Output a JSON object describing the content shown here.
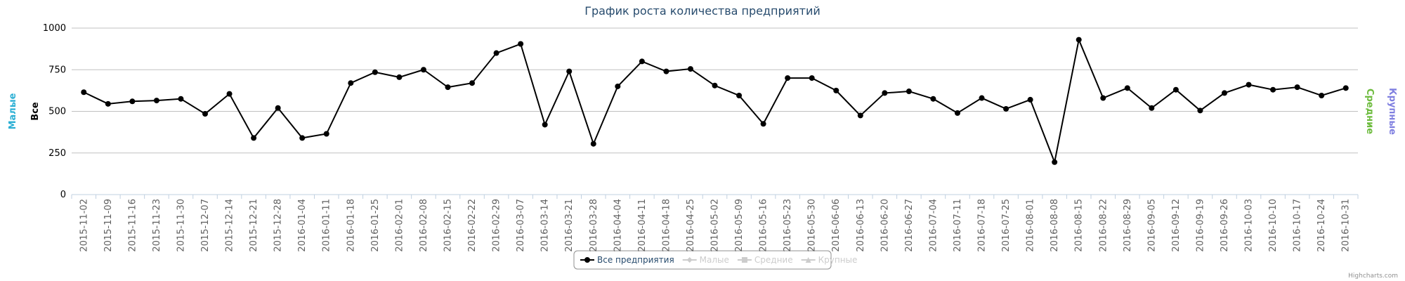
{
  "chart_data": {
    "type": "line",
    "title": "График роста количества предприятий",
    "credits": "Highcharts.com",
    "categories": [
      "2015-11-02",
      "2015-11-09",
      "2015-11-16",
      "2015-11-23",
      "2015-11-30",
      "2015-12-07",
      "2015-12-14",
      "2015-12-21",
      "2015-12-28",
      "2016-01-04",
      "2016-01-11",
      "2016-01-18",
      "2016-01-25",
      "2016-02-01",
      "2016-02-08",
      "2016-02-15",
      "2016-02-22",
      "2016-02-29",
      "2016-03-07",
      "2016-03-14",
      "2016-03-21",
      "2016-03-28",
      "2016-04-04",
      "2016-04-11",
      "2016-04-18",
      "2016-04-25",
      "2016-05-02",
      "2016-05-09",
      "2016-05-16",
      "2016-05-23",
      "2016-05-30",
      "2016-06-06",
      "2016-06-13",
      "2016-06-20",
      "2016-06-27",
      "2016-07-04",
      "2016-07-11",
      "2016-07-18",
      "2016-07-25",
      "2016-08-01",
      "2016-08-08",
      "2016-08-15",
      "2016-08-22",
      "2016-08-29",
      "2016-09-05",
      "2016-09-12",
      "2016-09-19",
      "2016-09-26",
      "2016-10-03",
      "2016-10-10",
      "2016-10-17",
      "2016-10-24",
      "2016-10-31"
    ],
    "series": [
      {
        "name": "Все предприятия",
        "color": "#000000",
        "marker": "circle",
        "visible": true,
        "values": [
          615,
          545,
          560,
          565,
          575,
          485,
          605,
          340,
          520,
          340,
          365,
          670,
          735,
          705,
          750,
          645,
          670,
          850,
          905,
          420,
          740,
          305,
          650,
          800,
          740,
          755,
          655,
          595,
          425,
          700,
          700,
          625,
          475,
          610,
          620,
          575,
          490,
          580,
          515,
          570,
          195,
          930,
          580,
          640,
          520,
          630,
          505,
          610,
          660,
          630,
          645,
          595,
          640
        ]
      },
      {
        "name": "Малые",
        "color": "#2bafd4",
        "marker": "diamond",
        "visible": false
      },
      {
        "name": "Средние",
        "color": "#6cbb3c",
        "marker": "square",
        "visible": false
      },
      {
        "name": "Крупные",
        "color": "#7f7fe0",
        "marker": "triangle",
        "visible": false
      }
    ],
    "axis_titles": [
      {
        "text": "Малые",
        "color": "#2bafd4",
        "side": "left"
      },
      {
        "text": "Все",
        "color": "#000000",
        "side": "left"
      },
      {
        "text": "Средние",
        "color": "#6cbb3c",
        "side": "right"
      },
      {
        "text": "Крупные",
        "color": "#7f7fe0",
        "side": "right"
      }
    ],
    "ylim": [
      0,
      1000
    ],
    "yticks": [
      0,
      250,
      500,
      750,
      1000
    ],
    "grid": true,
    "legend": "bottom"
  }
}
